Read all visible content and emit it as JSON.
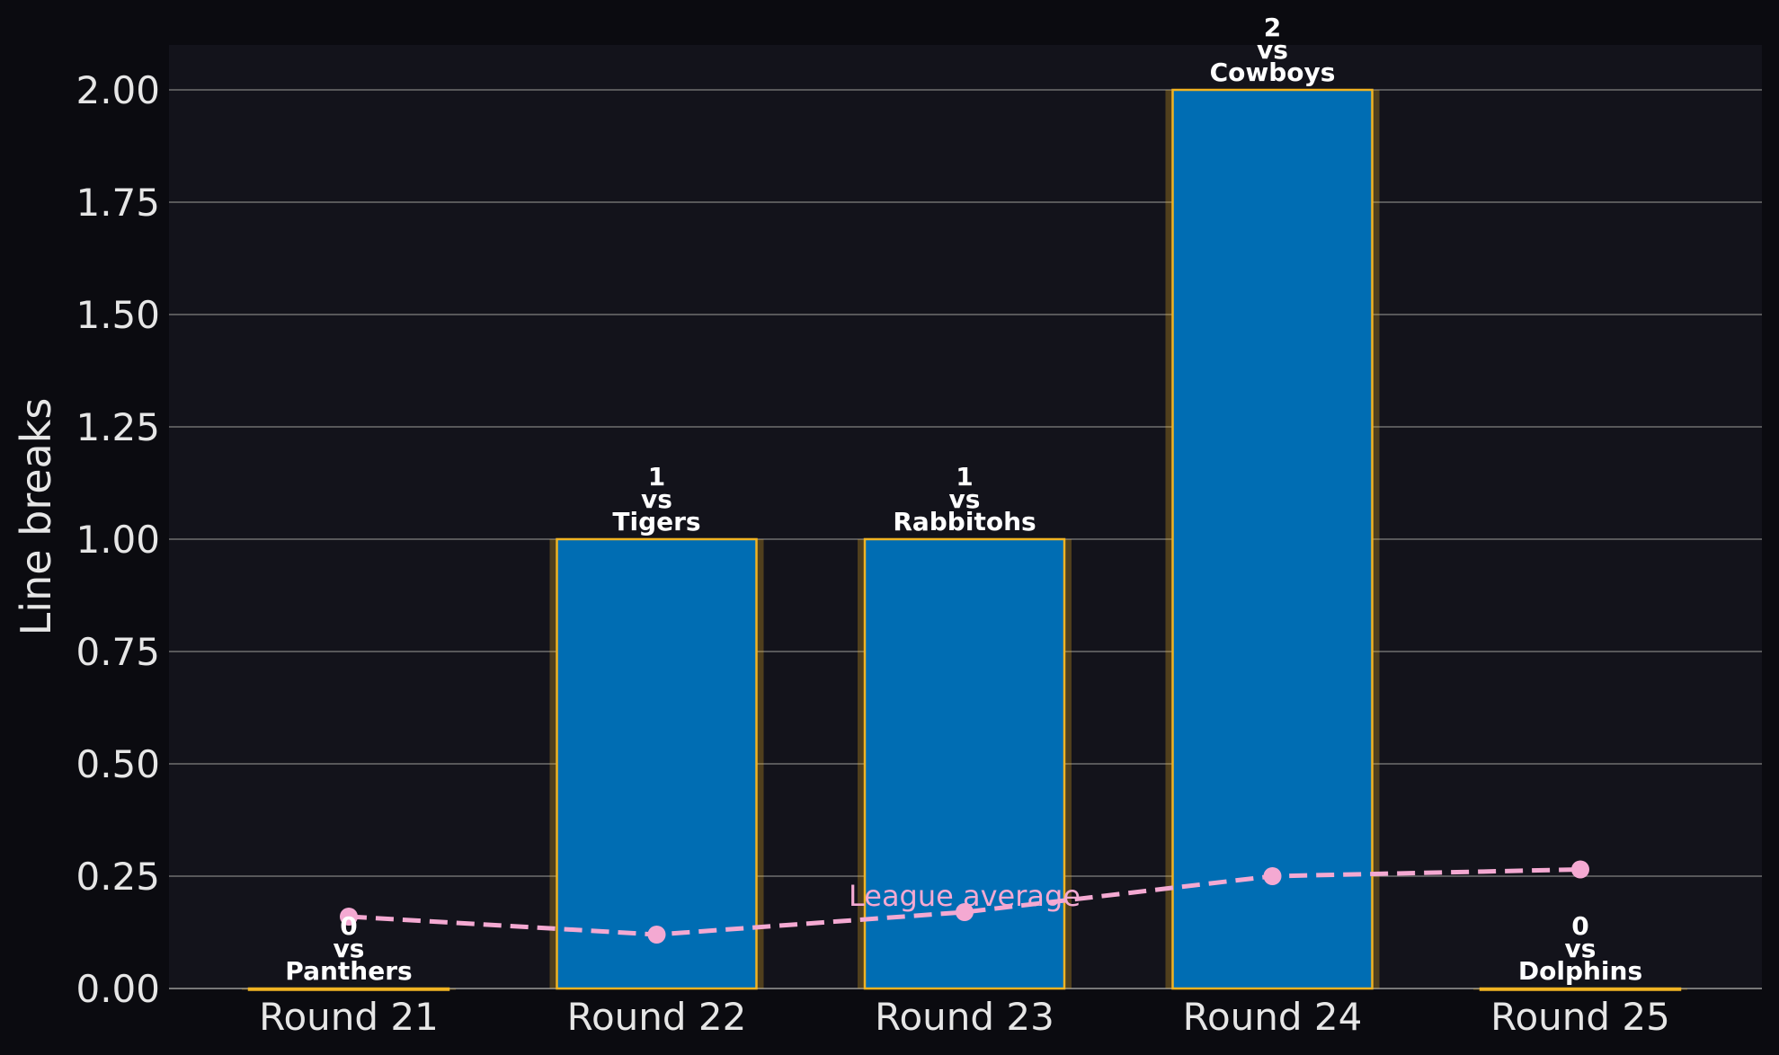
{
  "chart_data": {
    "type": "bar",
    "categories": [
      "Round 21",
      "Round 22",
      "Round 23",
      "Round 24",
      "Round 25"
    ],
    "values": [
      0,
      1,
      1,
      2,
      0
    ],
    "opponents": [
      "Panthers",
      "Tigers",
      "Rabbitohs",
      "Cowboys",
      "Dolphins"
    ],
    "vs_text": "vs",
    "league_average": {
      "name": "League average",
      "values": [
        0.16,
        0.12,
        0.17,
        0.25,
        0.265
      ]
    },
    "title": "",
    "xlabel": "",
    "ylabel": "Line breaks",
    "ylim": [
      0,
      2.1
    ],
    "yticks": [
      "0.00",
      "0.25",
      "0.50",
      "0.75",
      "1.00",
      "1.25",
      "1.50",
      "1.75",
      "2.00"
    ],
    "grid": true,
    "colors": {
      "background": "#0b0b10",
      "plot_background": "#13131b",
      "bar_fill": "#006db3",
      "bar_edge": "#f0b323",
      "average_line": "#f4a9d2",
      "grid": "#707070",
      "text": "#e6e6e6"
    }
  }
}
